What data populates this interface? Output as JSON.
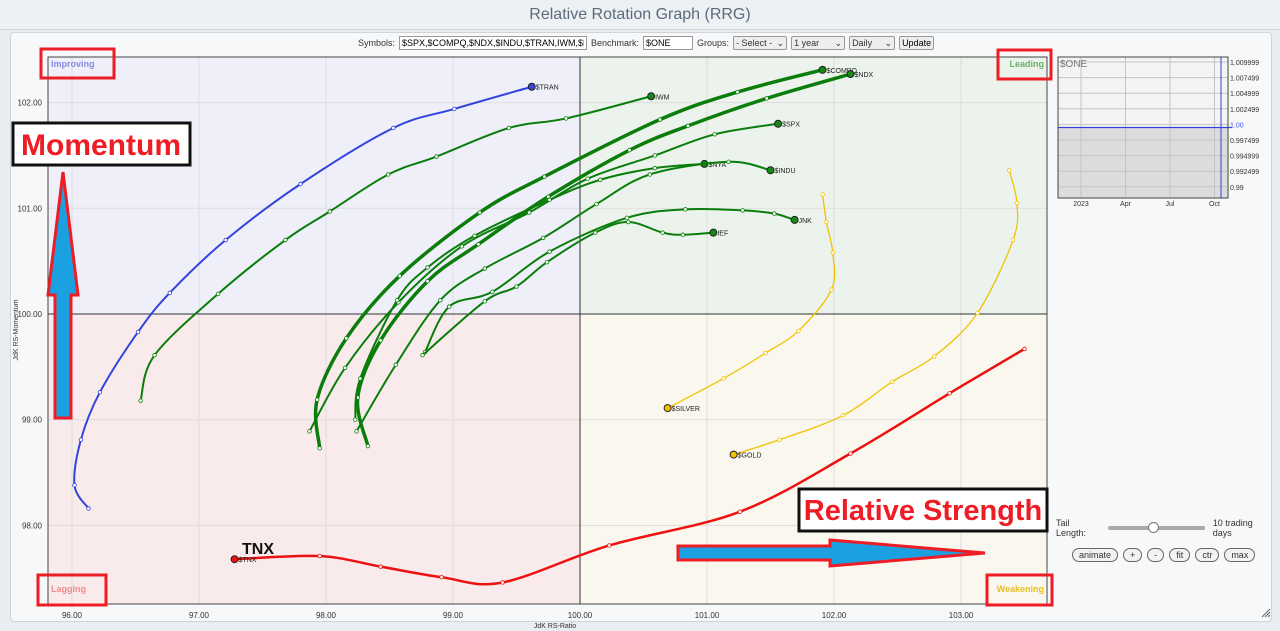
{
  "title": "Relative Rotation Graph (RRG)",
  "toolbar": {
    "symbols_label": "Symbols:",
    "symbols_value": "$SPX,$COMPQ,$NDX,$INDU,$TRAN,IWM,$NYA,$'",
    "benchmark_label": "Benchmark:",
    "benchmark_value": "$ONE",
    "groups_label": "Groups:",
    "groups_value": "- Select -",
    "period_value": "1 year",
    "frequency_value": "Daily",
    "update_label": "Update"
  },
  "controls": {
    "tail_label": "Tail Length:",
    "tail_value": "10 trading days",
    "tail_fraction": 0.45,
    "buttons": [
      "animate",
      "+",
      "-",
      "fit",
      "ctr",
      "max"
    ]
  },
  "annotations": {
    "momentum": "Momentum",
    "relative_strength": "Relative Strength",
    "tnx": "TNX",
    "color": "#ee1c24",
    "arrow_color": "#1ba1e2"
  },
  "chart_data": {
    "type": "scatter-line",
    "xlabel": "JdK RS-Ratio",
    "ylabel": "JdK RS-Momentum",
    "xlim": [
      95.8,
      103.7
    ],
    "ylim": [
      97.26,
      102.43
    ],
    "xticks": [
      "96.00",
      "97.00",
      "98.00",
      "99.00",
      "100.00",
      "101.00",
      "102.00",
      "103.00"
    ],
    "yticks": [
      "98.00",
      "99.00",
      "100.00",
      "101.00",
      "102.00"
    ],
    "grid": true,
    "quadrants": {
      "improving": "Improving",
      "leading": "Leading",
      "lagging": "Lagging",
      "weakening": "Weakening"
    },
    "quadrant_colors": {
      "improving": "#eeeff9",
      "leading": "#ecf3ec",
      "lagging": "#f9ebeb",
      "weakening": "#f9f7ee"
    },
    "series": [
      {
        "name": "$TRAN",
        "color": "#3344dd",
        "x": [
          96.13,
          96.02,
          96.07,
          96.22,
          96.52,
          96.77,
          97.21,
          97.8,
          98.53,
          99.01,
          99.62
        ],
        "y": [
          98.16,
          98.38,
          98.81,
          99.26,
          99.83,
          100.2,
          100.7,
          101.23,
          101.76,
          101.94,
          102.15
        ]
      },
      {
        "name": "IWM",
        "color": "#0a7d0a",
        "x": [
          96.54,
          96.65,
          97.15,
          97.68,
          98.03,
          98.49,
          98.87,
          99.44,
          99.89,
          100.56
        ],
        "y": [
          99.18,
          99.61,
          100.19,
          100.7,
          100.97,
          101.32,
          101.49,
          101.76,
          101.85,
          102.06
        ]
      },
      {
        "name": "$COMPQ",
        "color": "#0a7d0a",
        "x": [
          97.95,
          97.93,
          98.16,
          98.58,
          99.21,
          99.72,
          100.63,
          101.24,
          101.91
        ],
        "y": [
          98.73,
          99.19,
          99.77,
          100.36,
          100.96,
          101.3,
          101.84,
          102.1,
          102.31
        ]
      },
      {
        "name": "$NDX",
        "color": "#0a7d0a",
        "x": [
          98.33,
          98.25,
          98.43,
          98.8,
          99.2,
          99.75,
          100.39,
          100.85,
          101.47,
          102.13
        ],
        "y": [
          98.75,
          99.21,
          99.75,
          100.31,
          100.66,
          101.11,
          101.55,
          101.78,
          102.04,
          102.27
        ]
      },
      {
        "name": "$SPX",
        "color": "#0a7d0a",
        "x": [
          97.87,
          98.15,
          98.57,
          99.07,
          99.6,
          100.06,
          100.59,
          101.06,
          101.56
        ],
        "y": [
          98.89,
          99.49,
          100.11,
          100.64,
          100.96,
          101.28,
          101.5,
          101.7,
          101.8
        ]
      },
      {
        "name": "$NYA",
        "color": "#0a7d0a",
        "x": [
          98.23,
          98.27,
          98.56,
          98.8,
          99.17,
          99.76,
          100.16,
          100.59,
          100.98
        ],
        "y": [
          99.0,
          99.39,
          100.13,
          100.44,
          100.74,
          101.08,
          101.27,
          101.38,
          101.42
        ]
      },
      {
        "name": "$INDU",
        "color": "#0a7d0a",
        "x": [
          98.24,
          98.55,
          98.9,
          99.25,
          99.71,
          100.13,
          100.55,
          101.17,
          101.5
        ],
        "y": [
          98.89,
          99.52,
          100.13,
          100.43,
          100.72,
          101.04,
          101.32,
          101.44,
          101.36
        ]
      },
      {
        "name": "JNK",
        "color": "#0a7d0a",
        "x": [
          98.78,
          98.97,
          99.31,
          99.76,
          100.37,
          100.83,
          101.28,
          101.53,
          101.69
        ],
        "y": [
          99.64,
          100.07,
          100.21,
          100.59,
          100.91,
          100.99,
          100.98,
          100.95,
          100.89
        ]
      },
      {
        "name": "IEF",
        "color": "#0a7d0a",
        "x": [
          98.76,
          99.25,
          99.5,
          99.74,
          100.12,
          100.38,
          100.65,
          100.81,
          101.05
        ],
        "y": [
          99.61,
          100.12,
          100.26,
          100.49,
          100.77,
          100.87,
          100.77,
          100.75,
          100.77
        ]
      },
      {
        "name": "$SILVER",
        "color": "#f2c200",
        "x": [
          101.91,
          101.94,
          101.99,
          101.98,
          101.72,
          101.46,
          101.13,
          100.69
        ],
        "y": [
          101.13,
          100.87,
          100.58,
          100.23,
          99.84,
          99.63,
          99.39,
          99.11
        ]
      },
      {
        "name": "$GOLD",
        "color": "#f2c200",
        "x": [
          103.38,
          103.44,
          103.41,
          103.13,
          102.79,
          102.46,
          102.07,
          101.57,
          101.21
        ],
        "y": [
          101.36,
          101.05,
          100.7,
          100.01,
          99.6,
          99.36,
          99.04,
          98.81,
          98.67
        ]
      },
      {
        "name": "$TNX",
        "color": "#ee1111",
        "x": [
          103.5,
          102.91,
          102.13,
          101.26,
          100.23,
          99.39,
          98.91,
          98.43,
          97.95,
          97.28
        ],
        "y": [
          99.67,
          99.25,
          98.68,
          98.13,
          97.81,
          97.46,
          97.51,
          97.61,
          97.71,
          97.68
        ]
      }
    ]
  },
  "mini_chart": {
    "label": "$ONE",
    "yticks": [
      "1.009999",
      "1.007499",
      "1.004999",
      "1.002499",
      "1.00",
      "0.997499",
      "0.994999",
      "0.992499",
      "0.99"
    ],
    "xticks": [
      "2023",
      "Apr",
      "Jul",
      "Oct"
    ],
    "value": "1.00"
  }
}
